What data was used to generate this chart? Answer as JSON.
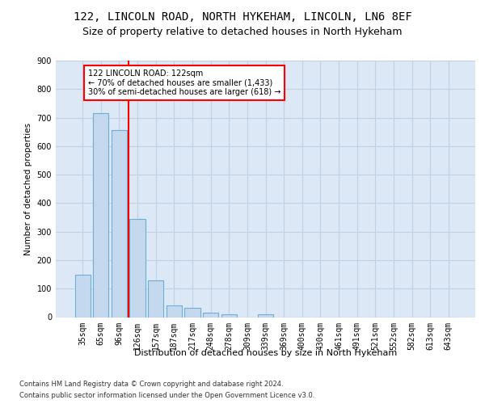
{
  "title1": "122, LINCOLN ROAD, NORTH HYKEHAM, LINCOLN, LN6 8EF",
  "title2": "Size of property relative to detached houses in North Hykeham",
  "xlabel": "Distribution of detached houses by size in North Hykeham",
  "ylabel": "Number of detached properties",
  "categories": [
    "35sqm",
    "65sqm",
    "96sqm",
    "126sqm",
    "157sqm",
    "187sqm",
    "217sqm",
    "248sqm",
    "278sqm",
    "309sqm",
    "339sqm",
    "369sqm",
    "400sqm",
    "430sqm",
    "461sqm",
    "491sqm",
    "521sqm",
    "552sqm",
    "582sqm",
    "613sqm",
    "643sqm"
  ],
  "values": [
    150,
    715,
    655,
    345,
    130,
    40,
    33,
    15,
    11,
    0,
    10,
    0,
    0,
    0,
    0,
    0,
    0,
    0,
    0,
    0,
    0
  ],
  "bar_color": "#c5d9ee",
  "bar_edge_color": "#6baed6",
  "vline_x_index": 3,
  "vline_color": "red",
  "annotation_line1": "122 LINCOLN ROAD: 122sqm",
  "annotation_line2": "← 70% of detached houses are smaller (1,433)",
  "annotation_line3": "30% of semi-detached houses are larger (618) →",
  "annotation_box_facecolor": "white",
  "annotation_box_edgecolor": "red",
  "ylim": [
    0,
    900
  ],
  "yticks": [
    0,
    100,
    200,
    300,
    400,
    500,
    600,
    700,
    800,
    900
  ],
  "plot_bg_color": "#dce8f5",
  "grid_color": "#c0d0e8",
  "footer1": "Contains HM Land Registry data © Crown copyright and database right 2024.",
  "footer2": "Contains public sector information licensed under the Open Government Licence v3.0.",
  "title1_fontsize": 10,
  "title2_fontsize": 9,
  "xlabel_fontsize": 8,
  "ylabel_fontsize": 7.5,
  "tick_fontsize": 7,
  "annotation_fontsize": 7,
  "footer_fontsize": 6
}
